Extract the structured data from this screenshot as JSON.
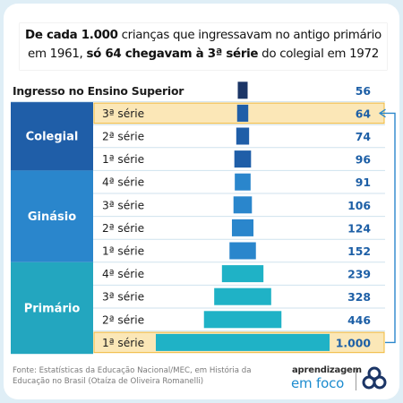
{
  "title": {
    "line1_bold": "De cada 1.000",
    "line1_rest": " crianças que ingressavam no antigo primário",
    "line2_start": "em 1961, ",
    "line2_bold": "só 64 chegavam à 3ª série",
    "line2_end": " do colegial em 1972"
  },
  "chart_data": {
    "type": "bar",
    "orientation": "horizontal-centered",
    "rows": [
      {
        "group": "",
        "label": "Ingresso no Ensino Superior",
        "value": 56,
        "value_label": "56"
      },
      {
        "group": "Colegial",
        "label": "3ª série",
        "value": 64,
        "value_label": "64",
        "highlight": true
      },
      {
        "group": "Colegial",
        "label": "2ª série",
        "value": 74,
        "value_label": "74"
      },
      {
        "group": "Colegial",
        "label": "1ª série",
        "value": 96,
        "value_label": "96"
      },
      {
        "group": "Ginásio",
        "label": "4ª série",
        "value": 91,
        "value_label": "91"
      },
      {
        "group": "Ginásio",
        "label": "3ª série",
        "value": 106,
        "value_label": "106"
      },
      {
        "group": "Ginásio",
        "label": "2ª série",
        "value": 124,
        "value_label": "124"
      },
      {
        "group": "Ginásio",
        "label": "1ª série",
        "value": 152,
        "value_label": "152"
      },
      {
        "group": "Primário",
        "label": "4ª série",
        "value": 239,
        "value_label": "239"
      },
      {
        "group": "Primário",
        "label": "3ª série",
        "value": 328,
        "value_label": "328"
      },
      {
        "group": "Primário",
        "label": "2ª série",
        "value": 446,
        "value_label": "446"
      },
      {
        "group": "Primário",
        "label": "1ª série",
        "value": 1000,
        "value_label": "1.000",
        "highlight": true
      }
    ],
    "groups": [
      {
        "name": "Colegial",
        "color": "#1f5ea8"
      },
      {
        "name": "Ginásio",
        "color": "#2a86cc"
      },
      {
        "name": "Primário",
        "color": "#23a6bf"
      }
    ],
    "colors": {
      "superior": "#1b3566",
      "colegial": "#1f5ea8",
      "ginasio": "#2a86cc",
      "primario": "#1fb2c6",
      "highlight_fill": "#fbe7b7",
      "highlight_border": "#f0b83a",
      "value_text": "#1d5fa6",
      "arrow": "#2b87cc"
    }
  },
  "footer": {
    "source": "Fonte: Estatísticas da Educação Nacional/MEC, em História da Educação no Brasil (Otaíza de Oliveira Romanelli)"
  },
  "logo": {
    "line1": "aprendizagem",
    "line2": "em foco",
    "icon": "three-rings-logo-icon"
  }
}
